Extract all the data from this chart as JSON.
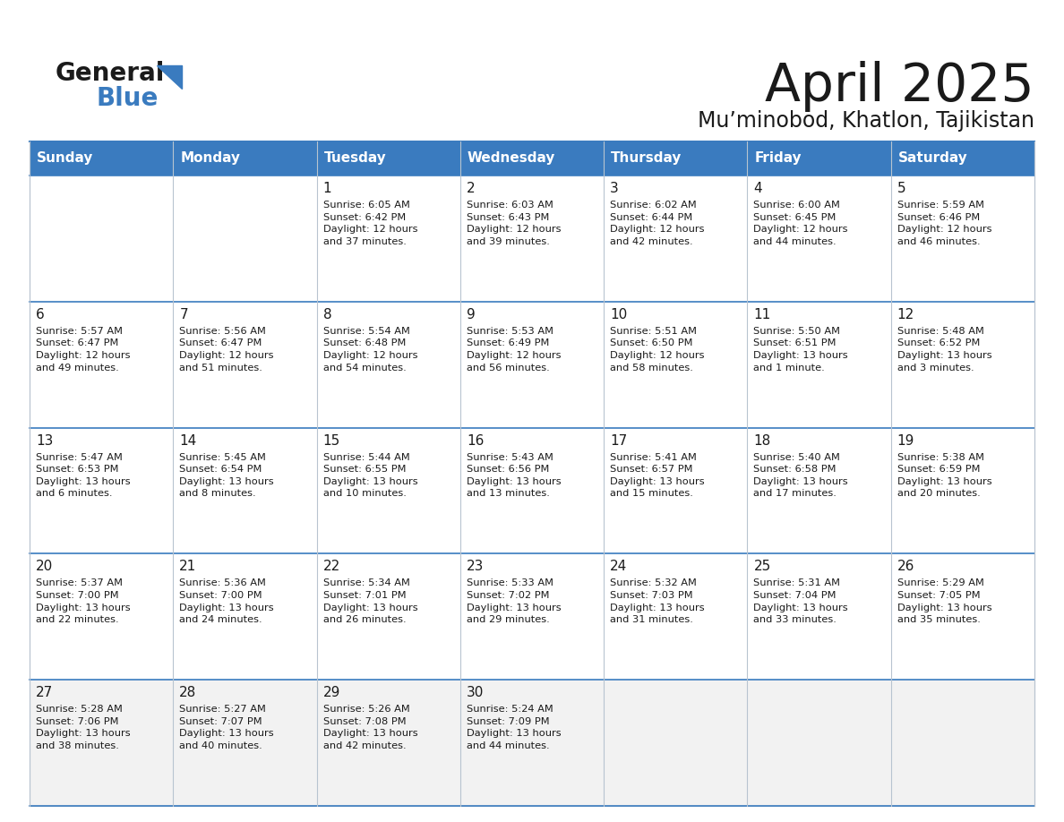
{
  "title": "April 2025",
  "subtitle": "Mu’minobod, Khatlon, Tajikistan",
  "header_bg": "#3a7bbf",
  "header_text": "#ffffff",
  "day_names": [
    "Sunday",
    "Monday",
    "Tuesday",
    "Wednesday",
    "Thursday",
    "Friday",
    "Saturday"
  ],
  "row_bg": "#ffffff",
  "row_bg_last": "#f0f0f0",
  "cell_border_color": "#b0b8c8",
  "row_divider_color": "#3a7bbf",
  "days": [
    {
      "day": 1,
      "col": 2,
      "row": 0,
      "sunrise": "6:05 AM",
      "sunset": "6:42 PM",
      "daylight": "12 hours\nand 37 minutes."
    },
    {
      "day": 2,
      "col": 3,
      "row": 0,
      "sunrise": "6:03 AM",
      "sunset": "6:43 PM",
      "daylight": "12 hours\nand 39 minutes."
    },
    {
      "day": 3,
      "col": 4,
      "row": 0,
      "sunrise": "6:02 AM",
      "sunset": "6:44 PM",
      "daylight": "12 hours\nand 42 minutes."
    },
    {
      "day": 4,
      "col": 5,
      "row": 0,
      "sunrise": "6:00 AM",
      "sunset": "6:45 PM",
      "daylight": "12 hours\nand 44 minutes."
    },
    {
      "day": 5,
      "col": 6,
      "row": 0,
      "sunrise": "5:59 AM",
      "sunset": "6:46 PM",
      "daylight": "12 hours\nand 46 minutes."
    },
    {
      "day": 6,
      "col": 0,
      "row": 1,
      "sunrise": "5:57 AM",
      "sunset": "6:47 PM",
      "daylight": "12 hours\nand 49 minutes."
    },
    {
      "day": 7,
      "col": 1,
      "row": 1,
      "sunrise": "5:56 AM",
      "sunset": "6:47 PM",
      "daylight": "12 hours\nand 51 minutes."
    },
    {
      "day": 8,
      "col": 2,
      "row": 1,
      "sunrise": "5:54 AM",
      "sunset": "6:48 PM",
      "daylight": "12 hours\nand 54 minutes."
    },
    {
      "day": 9,
      "col": 3,
      "row": 1,
      "sunrise": "5:53 AM",
      "sunset": "6:49 PM",
      "daylight": "12 hours\nand 56 minutes."
    },
    {
      "day": 10,
      "col": 4,
      "row": 1,
      "sunrise": "5:51 AM",
      "sunset": "6:50 PM",
      "daylight": "12 hours\nand 58 minutes."
    },
    {
      "day": 11,
      "col": 5,
      "row": 1,
      "sunrise": "5:50 AM",
      "sunset": "6:51 PM",
      "daylight": "13 hours\nand 1 minute."
    },
    {
      "day": 12,
      "col": 6,
      "row": 1,
      "sunrise": "5:48 AM",
      "sunset": "6:52 PM",
      "daylight": "13 hours\nand 3 minutes."
    },
    {
      "day": 13,
      "col": 0,
      "row": 2,
      "sunrise": "5:47 AM",
      "sunset": "6:53 PM",
      "daylight": "13 hours\nand 6 minutes."
    },
    {
      "day": 14,
      "col": 1,
      "row": 2,
      "sunrise": "5:45 AM",
      "sunset": "6:54 PM",
      "daylight": "13 hours\nand 8 minutes."
    },
    {
      "day": 15,
      "col": 2,
      "row": 2,
      "sunrise": "5:44 AM",
      "sunset": "6:55 PM",
      "daylight": "13 hours\nand 10 minutes."
    },
    {
      "day": 16,
      "col": 3,
      "row": 2,
      "sunrise": "5:43 AM",
      "sunset": "6:56 PM",
      "daylight": "13 hours\nand 13 minutes."
    },
    {
      "day": 17,
      "col": 4,
      "row": 2,
      "sunrise": "5:41 AM",
      "sunset": "6:57 PM",
      "daylight": "13 hours\nand 15 minutes."
    },
    {
      "day": 18,
      "col": 5,
      "row": 2,
      "sunrise": "5:40 AM",
      "sunset": "6:58 PM",
      "daylight": "13 hours\nand 17 minutes."
    },
    {
      "day": 19,
      "col": 6,
      "row": 2,
      "sunrise": "5:38 AM",
      "sunset": "6:59 PM",
      "daylight": "13 hours\nand 20 minutes."
    },
    {
      "day": 20,
      "col": 0,
      "row": 3,
      "sunrise": "5:37 AM",
      "sunset": "7:00 PM",
      "daylight": "13 hours\nand 22 minutes."
    },
    {
      "day": 21,
      "col": 1,
      "row": 3,
      "sunrise": "5:36 AM",
      "sunset": "7:00 PM",
      "daylight": "13 hours\nand 24 minutes."
    },
    {
      "day": 22,
      "col": 2,
      "row": 3,
      "sunrise": "5:34 AM",
      "sunset": "7:01 PM",
      "daylight": "13 hours\nand 26 minutes."
    },
    {
      "day": 23,
      "col": 3,
      "row": 3,
      "sunrise": "5:33 AM",
      "sunset": "7:02 PM",
      "daylight": "13 hours\nand 29 minutes."
    },
    {
      "day": 24,
      "col": 4,
      "row": 3,
      "sunrise": "5:32 AM",
      "sunset": "7:03 PM",
      "daylight": "13 hours\nand 31 minutes."
    },
    {
      "day": 25,
      "col": 5,
      "row": 3,
      "sunrise": "5:31 AM",
      "sunset": "7:04 PM",
      "daylight": "13 hours\nand 33 minutes."
    },
    {
      "day": 26,
      "col": 6,
      "row": 3,
      "sunrise": "5:29 AM",
      "sunset": "7:05 PM",
      "daylight": "13 hours\nand 35 minutes."
    },
    {
      "day": 27,
      "col": 0,
      "row": 4,
      "sunrise": "5:28 AM",
      "sunset": "7:06 PM",
      "daylight": "13 hours\nand 38 minutes."
    },
    {
      "day": 28,
      "col": 1,
      "row": 4,
      "sunrise": "5:27 AM",
      "sunset": "7:07 PM",
      "daylight": "13 hours\nand 40 minutes."
    },
    {
      "day": 29,
      "col": 2,
      "row": 4,
      "sunrise": "5:26 AM",
      "sunset": "7:08 PM",
      "daylight": "13 hours\nand 42 minutes."
    },
    {
      "day": 30,
      "col": 3,
      "row": 4,
      "sunrise": "5:24 AM",
      "sunset": "7:09 PM",
      "daylight": "13 hours\nand 44 minutes."
    }
  ]
}
